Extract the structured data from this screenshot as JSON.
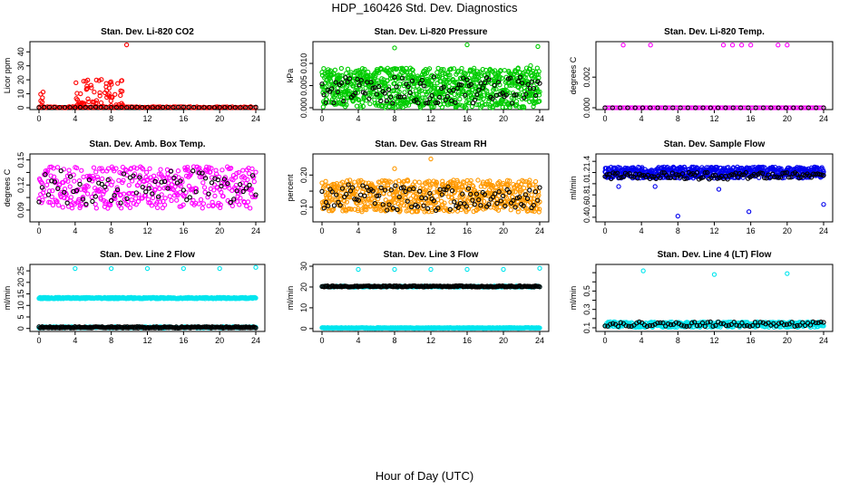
{
  "title": "HDP_160426  Std. Dev. Diagnostics",
  "xlabel": "Hour of Day (UTC)",
  "chart_data": [
    {
      "type": "scatter",
      "title": "Stan. Dev. Li-820 CO2",
      "ylabel": "Licor ppm",
      "xlim": [
        0,
        24
      ],
      "ylim": [
        0,
        46
      ],
      "yticks": [
        0,
        10,
        20,
        30,
        "40"
      ],
      "ytick_labels": [
        "0",
        "10",
        "20",
        "30",
        "40"
      ],
      "xticks": [
        0,
        4,
        8,
        12,
        16,
        20,
        24
      ],
      "color": "#ff0000",
      "base": {
        "start": 0,
        "end": 24,
        "level": 0.4,
        "spread": 0.4,
        "count": 130,
        "seed": 1
      },
      "clusters": [
        {
          "x0": 0.1,
          "x1": 0.6,
          "min": 1,
          "max": 16,
          "count": 6,
          "seed": 2
        },
        {
          "x0": 4,
          "x1": 9.5,
          "min": 1,
          "max": 21,
          "count": 70,
          "seed": 3
        }
      ],
      "outliers": [
        {
          "x": 9.7,
          "y": 45
        }
      ],
      "black": {
        "level": 0.3,
        "spread": 0.2,
        "every": 3,
        "seed": 4
      }
    },
    {
      "type": "scatter",
      "title": "Stan. Dev. Li-820 Pressure",
      "ylabel": "kPa",
      "xlim": [
        0,
        24
      ],
      "ylim": [
        0,
        0.0145
      ],
      "ytick_labels": [
        "0.000",
        "0.005",
        "0.010"
      ],
      "ytick_values": [
        0,
        0.005,
        0.01
      ],
      "xticks": [
        0,
        4,
        8,
        12,
        16,
        20,
        24
      ],
      "color": "#00cc00",
      "base": {
        "start": 0,
        "end": 24,
        "level": 0.0045,
        "spread": 0.0045,
        "count": 900,
        "seed": 5
      },
      "outliers": [
        {
          "x": 8,
          "y": 0.0135
        },
        {
          "x": 16,
          "y": 0.0142
        },
        {
          "x": 23.8,
          "y": 0.0138
        },
        {
          "x": 23,
          "y": 0.0095
        }
      ],
      "black": {
        "level": 0.004,
        "spread": 0.003,
        "every": 8,
        "seed": 6
      }
    },
    {
      "type": "scatter",
      "title": "Stan. Dev. Li-820 Temp.",
      "ylabel": "degrees C",
      "xlim": [
        0,
        24
      ],
      "ylim": [
        0,
        0.0042
      ],
      "ytick_labels": [
        "0.000",
        "0.002"
      ],
      "ytick_values": [
        0,
        0.002
      ],
      "xticks": [
        0,
        4,
        8,
        12,
        16,
        20,
        24
      ],
      "color": "#ff00ff",
      "base": {
        "start": 0,
        "end": 24,
        "level": 0.0,
        "spread": 0.0,
        "count": 120,
        "seed": 7
      },
      "outliers": [
        {
          "x": 2,
          "y": 0.0041
        },
        {
          "x": 5,
          "y": 0.0041
        },
        {
          "x": 13,
          "y": 0.0041
        },
        {
          "x": 14,
          "y": 0.0041
        },
        {
          "x": 15,
          "y": 0.0041
        },
        {
          "x": 16,
          "y": 0.0041
        },
        {
          "x": 19,
          "y": 0.0041
        },
        {
          "x": 20,
          "y": 0.0041
        }
      ],
      "black": {
        "level": 0.0,
        "spread": 0.0,
        "every": 4,
        "seed": 8
      }
    },
    {
      "type": "scatter",
      "title": "Stan. Dev. Amb. Box Temp.",
      "ylabel": "degrees C",
      "xlim": [
        0,
        24
      ],
      "ylim": [
        0.078,
        0.155
      ],
      "ytick_labels": [
        "0.09",
        "0.12",
        "0.15"
      ],
      "ytick_values": [
        0.09,
        0.12,
        0.15
      ],
      "extra_ticks": [
        0.105,
        0.135
      ],
      "xticks": [
        0,
        4,
        8,
        12,
        16,
        20,
        24
      ],
      "color": "#ff00ff",
      "base": {
        "start": 0,
        "end": 24,
        "level": 0.117,
        "spread": 0.025,
        "count": 420,
        "seed": 9
      },
      "outliers": [],
      "black": {
        "level": 0.117,
        "spread": 0.02,
        "every": 6,
        "seed": 10
      }
    },
    {
      "type": "scatter",
      "title": "Stan. Dev. Gas Stream RH",
      "ylabel": "percent",
      "xlim": [
        0,
        24
      ],
      "ylim": [
        0.06,
        0.26
      ],
      "ytick_labels": [
        "0.10",
        "0.20"
      ],
      "ytick_values": [
        0.1,
        0.2
      ],
      "extra_ticks": [
        0.15
      ],
      "xticks": [
        0,
        4,
        8,
        12,
        16,
        20,
        24
      ],
      "color": "#ff9900",
      "base": {
        "start": 0,
        "end": 24,
        "level": 0.135,
        "spread": 0.05,
        "count": 650,
        "seed": 11
      },
      "outliers": [
        {
          "x": 12,
          "y": 0.25
        },
        {
          "x": 8,
          "y": 0.22
        }
      ],
      "black": {
        "level": 0.13,
        "spread": 0.04,
        "every": 6,
        "seed": 12
      }
    },
    {
      "type": "scatter",
      "title": "Stan. Dev. Sample Flow",
      "ylabel": "ml/min",
      "xlim": [
        0,
        24
      ],
      "ylim": [
        0.35,
        1.5
      ],
      "ytick_labels": [
        "0.4",
        "0.6",
        "0.8",
        "1.0",
        "1.2",
        "1.4"
      ],
      "ytick_values": [
        0.4,
        0.6,
        0.8,
        1.0,
        1.2,
        1.4
      ],
      "xticks": [
        0,
        4,
        8,
        12,
        16,
        20,
        24
      ],
      "color": "#0000ee",
      "base": {
        "start": 0,
        "end": 24,
        "level": 1.2,
        "spread": 0.1,
        "count": 650,
        "seed": 13
      },
      "outliers": [
        {
          "x": 8,
          "y": 0.42
        },
        {
          "x": 15.8,
          "y": 0.5
        },
        {
          "x": 24,
          "y": 0.63
        },
        {
          "x": 5.5,
          "y": 0.95
        },
        {
          "x": 12.5,
          "y": 0.9
        },
        {
          "x": 1.5,
          "y": 0.95
        }
      ],
      "black": {
        "level": 1.14,
        "spread": 0.06,
        "every": 6,
        "seed": 14
      }
    },
    {
      "type": "scatter",
      "title": "Stan. Dev. Line 2 Flow",
      "ylabel": "ml/min",
      "xlim": [
        0,
        24
      ],
      "ylim": [
        -0.5,
        27
      ],
      "ytick_labels": [
        "0",
        "5",
        "10",
        "15",
        "20",
        "25"
      ],
      "ytick_values": [
        0,
        5,
        10,
        15,
        20,
        25
      ],
      "xticks": [
        0,
        4,
        8,
        12,
        16,
        20,
        24
      ],
      "color": "#00e5ee",
      "base": {
        "start": 0,
        "end": 24,
        "level": 13.2,
        "spread": 0.3,
        "count": 400,
        "seed": 15
      },
      "base2": {
        "start": 0,
        "end": 24,
        "level": 0.5,
        "spread": 0.3,
        "count": 200,
        "seed": 16
      },
      "outliers": [
        {
          "x": 4,
          "y": 26
        },
        {
          "x": 8,
          "y": 26
        },
        {
          "x": 12,
          "y": 26
        },
        {
          "x": 16,
          "y": 26
        },
        {
          "x": 20,
          "y": 26
        },
        {
          "x": 24,
          "y": 26.5
        }
      ],
      "black": {
        "level": 0.5,
        "spread": 0.3,
        "every": 2,
        "seed": 17
      }
    },
    {
      "type": "scatter",
      "title": "Stan. Dev. Line 3 Flow",
      "ylabel": "ml/min",
      "xlim": [
        0,
        24
      ],
      "ylim": [
        -0.5,
        30
      ],
      "ytick_labels": [
        "0",
        "10",
        "20",
        "30"
      ],
      "ytick_values": [
        0,
        10,
        20,
        30
      ],
      "xticks": [
        0,
        4,
        8,
        12,
        16,
        20,
        24
      ],
      "color": "#00e5ee",
      "base": {
        "start": 0,
        "end": 24,
        "level": 0.3,
        "spread": 0.2,
        "count": 400,
        "seed": 18
      },
      "base2": {
        "start": 0,
        "end": 24,
        "level": 20.2,
        "spread": 0.3,
        "count": 150,
        "seed": 19
      },
      "outliers": [
        {
          "x": 4,
          "y": 28.5
        },
        {
          "x": 8,
          "y": 28.5
        },
        {
          "x": 12,
          "y": 28.5
        },
        {
          "x": 16,
          "y": 28.5
        },
        {
          "x": 20,
          "y": 28.5
        },
        {
          "x": 24,
          "y": 29
        }
      ],
      "black": {
        "level": 20.3,
        "spread": 0.3,
        "every": 2,
        "seed": 20
      }
    },
    {
      "type": "scatter",
      "title": "Stan. Dev. Line 4 (LT) Flow",
      "ylabel": "ml/min",
      "xlim": [
        0,
        24
      ],
      "ylim": [
        0.08,
        0.77
      ],
      "ytick_labels": [
        "0.1",
        "0.3",
        "0.5"
      ],
      "ytick_values": [
        0.1,
        0.3,
        0.5
      ],
      "extra_ticks": [
        0.2,
        0.4,
        0.6,
        0.7
      ],
      "xticks": [
        0,
        4,
        8,
        12,
        16,
        20,
        24
      ],
      "color": "#00e5ee",
      "base": {
        "start": 0,
        "end": 24,
        "level": 0.135,
        "spread": 0.03,
        "count": 420,
        "seed": 21
      },
      "outliers": [
        {
          "x": 4.2,
          "y": 0.72
        },
        {
          "x": 12,
          "y": 0.68
        },
        {
          "x": 20,
          "y": 0.69
        }
      ],
      "black": {
        "level": 0.14,
        "spread": 0.025,
        "every": 5,
        "seed": 22
      }
    }
  ]
}
